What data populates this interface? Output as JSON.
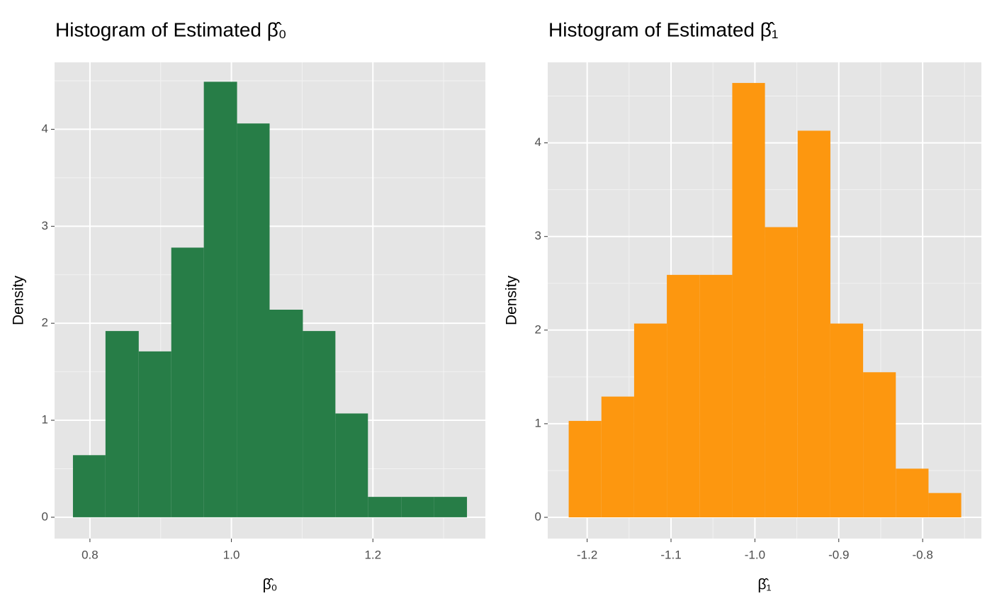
{
  "chart_data": [
    {
      "type": "histogram",
      "title": "Histogram of Estimated β̂₀",
      "xlabel": "β̂₀",
      "ylabel": "Density",
      "bins": [
        0.776,
        0.822,
        0.869,
        0.915,
        0.961,
        1.008,
        1.054,
        1.101,
        1.147,
        1.193,
        1.24,
        1.286,
        1.333
      ],
      "values": [
        0.64,
        1.92,
        1.71,
        2.78,
        4.49,
        4.06,
        2.14,
        1.92,
        1.07,
        0.21,
        0.21,
        0.21
      ],
      "color": "#277d47",
      "xlim": [
        0.75,
        1.359
      ],
      "xticks": [
        {
          "value": 0.8,
          "label": "0.8"
        },
        {
          "value": 1.0,
          "label": "1.0"
        },
        {
          "value": 1.2,
          "label": "1.2"
        }
      ],
      "minor_xticks": [
        0.9,
        1.1,
        1.3
      ],
      "ylim": [
        -0.22,
        4.69
      ],
      "yticks": [
        0,
        1,
        2,
        3,
        4
      ],
      "minor_yticks": [
        0.5,
        1.5,
        2.5,
        3.5,
        4.5
      ],
      "grid": true
    },
    {
      "type": "histogram",
      "title": "Histogram of Estimated β̂₁",
      "xlabel": "β̂₁",
      "ylabel": "Density",
      "bins": [
        -1.222,
        -1.183,
        -1.144,
        -1.105,
        -1.066,
        -1.027,
        -0.988,
        -0.949,
        -0.91,
        -0.871,
        -0.832,
        -0.793,
        -0.754
      ],
      "values": [
        1.03,
        1.29,
        2.07,
        2.59,
        2.59,
        4.64,
        3.1,
        4.13,
        2.07,
        1.55,
        0.52,
        0.26
      ],
      "color": "#fd970f",
      "xlim": [
        -1.247,
        -0.73
      ],
      "xticks": [
        -1.2,
        -1.1,
        {
          "value": -1.0,
          "label": "-1.0"
        },
        -0.9,
        -0.8
      ],
      "minor_xticks": [
        -1.15,
        -1.05,
        -0.95,
        -0.85,
        -0.75
      ],
      "ylim": [
        -0.227,
        4.86
      ],
      "yticks": [
        0,
        1,
        2,
        3,
        4
      ],
      "minor_yticks": [
        0.5,
        1.5,
        2.5,
        3.5,
        4.5
      ],
      "grid": true
    }
  ]
}
